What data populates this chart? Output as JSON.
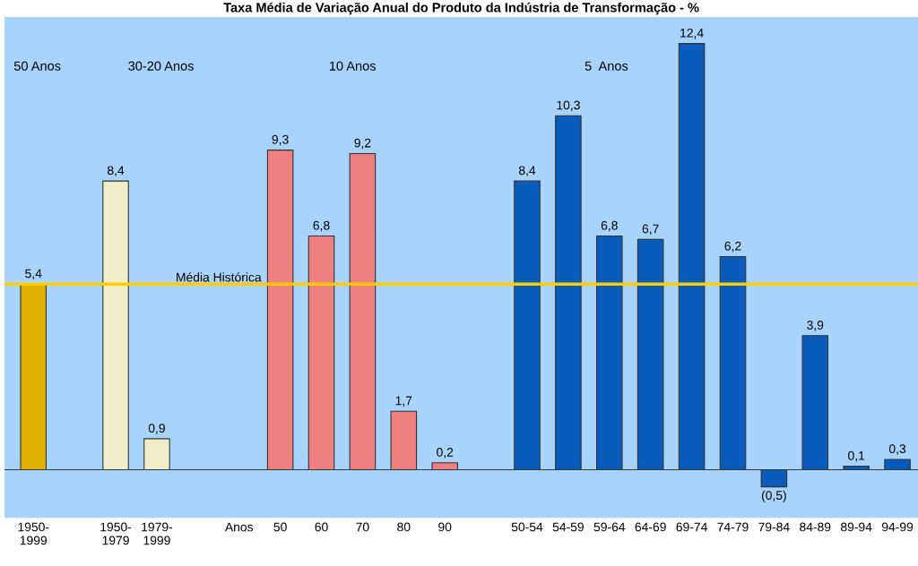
{
  "chart_data": {
    "type": "bar",
    "title": "Taxa Média de Variação Anual do Produto da Indústria de Transformação - %",
    "categories": [
      "1950-\n1999",
      null,
      "1950-\n1979",
      "1979-\n1999",
      null,
      "Anos",
      "50",
      "60",
      "70",
      "80",
      "90",
      null,
      "50-54",
      "54-59",
      "59-64",
      "64-69",
      "69-74",
      "74-79",
      "79-84",
      "84-89",
      "89-94",
      "94-99"
    ],
    "values": [
      5.4,
      null,
      8.4,
      0.9,
      null,
      null,
      9.3,
      6.8,
      9.2,
      1.7,
      0.2,
      null,
      8.4,
      10.3,
      6.8,
      6.7,
      12.4,
      6.2,
      -0.5,
      3.9,
      0.1,
      0.3
    ],
    "value_labels": [
      "5,4",
      null,
      "8,4",
      "0,9",
      null,
      null,
      "9,3",
      "6,8",
      "9,2",
      "1,7",
      "0,2",
      null,
      "8,4",
      "10,3",
      "6,8",
      "6,7",
      "12,4",
      "6,2",
      "(0,5)",
      "3,9",
      "0,1",
      "0,3"
    ],
    "colors": [
      "#e0b000",
      null,
      "#f0eec8",
      "#f0eec8",
      null,
      null,
      "#ee8080",
      "#ee8080",
      "#ee8080",
      "#ee8080",
      "#ee8080",
      null,
      "#0a5cbc",
      "#0a5cbc",
      "#0a5cbc",
      "#0a5cbc",
      "#0a5cbc",
      "#0a5cbc",
      "#0a5cbc",
      "#0a5cbc",
      "#0a5cbc",
      "#0a5cbc"
    ],
    "ref_lines": [
      {
        "axis": "y",
        "value": 5.4,
        "label": "Média Histórica",
        "color": "#ffcc00"
      }
    ],
    "grid": false,
    "annotations": [
      "50 Anos",
      "30-20 Anos",
      "10 Anos",
      "5  Anos"
    ]
  }
}
